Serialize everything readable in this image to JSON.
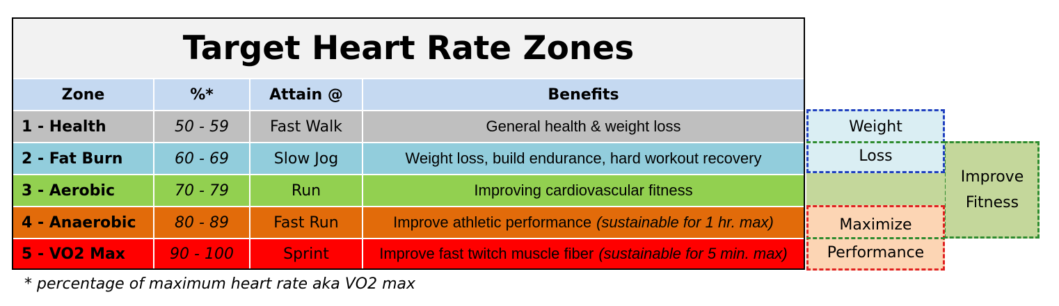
{
  "title": "Target Heart Rate Zones",
  "colors": {
    "header": "#c5d9f1",
    "title_bg": "#f2f2f2",
    "health": "#bfbfbf",
    "fat_burn": "#92cddc",
    "aerobic": "#92d050",
    "anaerobic": "#e26b0a",
    "vo2max": "#ff0000",
    "weight_loss_fill": "#daeef3",
    "weight_loss_border": "#1f3fbf",
    "improve_fitness_fill": "#c4d79b",
    "improve_fitness_border": "#2e8b2e",
    "maximize_fill": "#fcd5b4",
    "maximize_border": "#e02020"
  },
  "columns": [
    "Zone",
    "%*",
    "Attain @",
    "Benefits"
  ],
  "rows": [
    {
      "zone": "1 - Health",
      "pct": "50 - 59",
      "attain": "Fast Walk",
      "benefit": "General health & weight loss",
      "note": ""
    },
    {
      "zone": "2 - Fat Burn",
      "pct": "60 - 69",
      "attain": "Slow Jog",
      "benefit": "Weight loss, build endurance, hard workout recovery",
      "note": ""
    },
    {
      "zone": "3 - Aerobic",
      "pct": "70 - 79",
      "attain": "Run",
      "benefit": "Improving cardiovascular fitness",
      "note": ""
    },
    {
      "zone": "4 - Anaerobic",
      "pct": "80 - 89",
      "attain": "Fast Run",
      "benefit": "Improve athletic performance",
      "note": "(sustainable for 1 hr. max)"
    },
    {
      "zone": "5 - VO2 Max",
      "pct": "90 - 100",
      "attain": "Sprint",
      "benefit": "Improve fast twitch muscle fiber",
      "note": "(sustainable for 5 min. max)"
    }
  ],
  "footnote": "* percentage of maximum heart rate aka VO2 max",
  "side": {
    "weight": "Weight",
    "loss": "Loss",
    "improve": "Improve",
    "fitness": "Fitness",
    "maximize": "Maximize",
    "performance": "Performance"
  }
}
